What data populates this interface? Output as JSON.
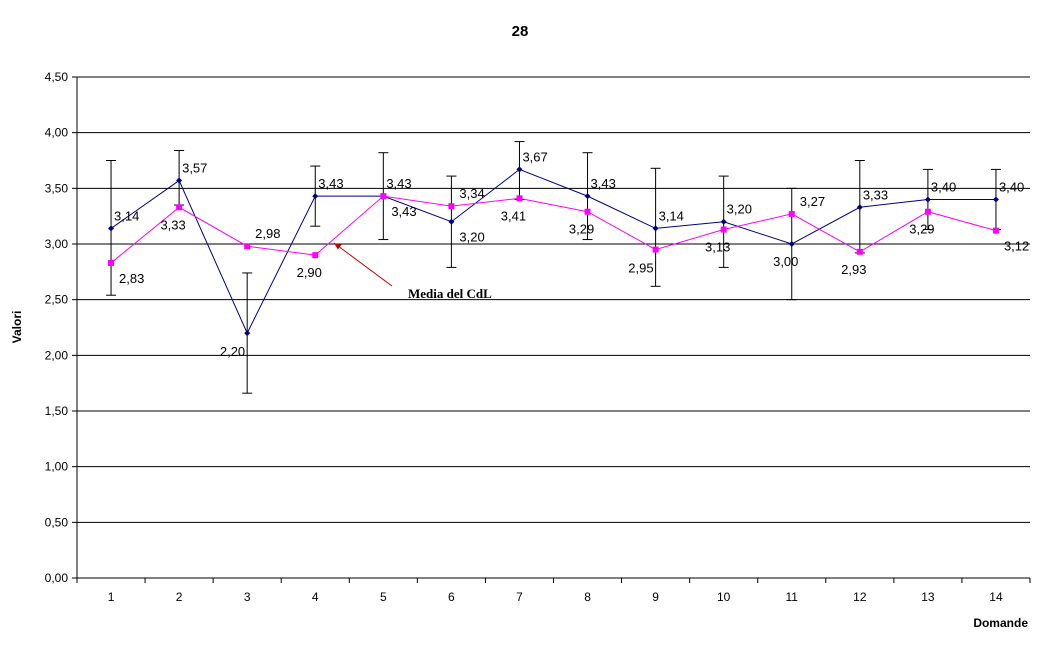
{
  "chart_data": {
    "type": "line",
    "title": "28",
    "xlabel": "Domande",
    "ylabel": "Valori",
    "ylim": [
      0,
      4.5
    ],
    "y_ticks": [
      "0,00",
      "0,50",
      "1,00",
      "1,50",
      "2,00",
      "2,50",
      "3,00",
      "3,50",
      "4,00",
      "4,50"
    ],
    "y_tick_values": [
      0,
      0.5,
      1,
      1.5,
      2,
      2.5,
      3,
      3.5,
      4,
      4.5
    ],
    "categories": [
      "1",
      "2",
      "3",
      "4",
      "5",
      "6",
      "7",
      "8",
      "9",
      "10",
      "11",
      "12",
      "13",
      "14"
    ],
    "grid": "horizontal",
    "series": [
      {
        "color": "#000080",
        "marker": "diamond",
        "values": [
          3.14,
          3.57,
          2.2,
          3.43,
          3.43,
          3.2,
          3.67,
          3.43,
          3.14,
          3.2,
          3.0,
          3.33,
          3.4,
          3.4
        ],
        "labels": [
          "3,14",
          "3,57",
          "2,20",
          "3,43",
          "3,43",
          "3,20",
          "3,67",
          "3,43",
          "3,14",
          "3,20",
          "3,00",
          "3,33",
          "3,40",
          "3,40"
        ],
        "error_low": [
          2.54,
          3.35,
          1.66,
          3.16,
          3.04,
          2.79,
          3.4,
          3.04,
          2.62,
          2.79,
          2.5,
          2.92,
          3.13,
          3.13
        ],
        "error_high": [
          3.75,
          3.84,
          2.74,
          3.7,
          3.82,
          3.61,
          3.92,
          3.82,
          3.68,
          3.61,
          3.5,
          3.75,
          3.67,
          3.67
        ]
      },
      {
        "color": "#ff00ff",
        "marker": "square",
        "values": [
          2.83,
          3.33,
          2.98,
          2.9,
          3.43,
          3.34,
          3.41,
          3.29,
          2.95,
          3.13,
          3.27,
          2.93,
          3.29,
          3.12
        ],
        "labels": [
          "2,83",
          "3,33",
          "2,98",
          "2,90",
          "3,43",
          "3,34",
          "3,41",
          "3,29",
          "2,95",
          "3,13",
          "3,27",
          "2,93",
          "3,29",
          "3,12"
        ]
      }
    ],
    "annotation": {
      "text": "Media del CdL",
      "arrow_color": "#cc0000"
    }
  }
}
